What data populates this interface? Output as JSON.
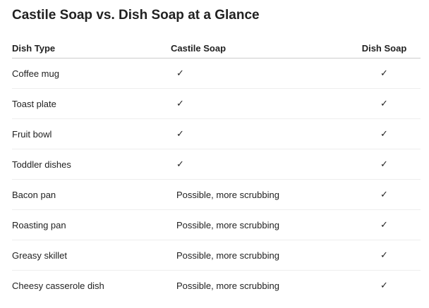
{
  "title": "Castile Soap vs. Dish Soap at a Glance",
  "table": {
    "headers": [
      "Dish Type",
      "Castile Soap",
      "Dish Soap"
    ],
    "rows": [
      [
        "Coffee mug",
        "✓",
        "✓"
      ],
      [
        "Toast plate",
        "✓",
        "✓"
      ],
      [
        "Fruit bowl",
        "✓",
        "✓"
      ],
      [
        "Toddler dishes",
        "✓",
        "✓"
      ],
      [
        "Bacon pan",
        "Possible, more scrubbing",
        "✓"
      ],
      [
        "Roasting pan",
        "Possible, more scrubbing",
        "✓"
      ],
      [
        "Greasy skillet",
        "Possible, more scrubbing",
        "✓"
      ],
      [
        "Cheesy casserole dish",
        "Possible, more scrubbing",
        "✓"
      ]
    ]
  }
}
